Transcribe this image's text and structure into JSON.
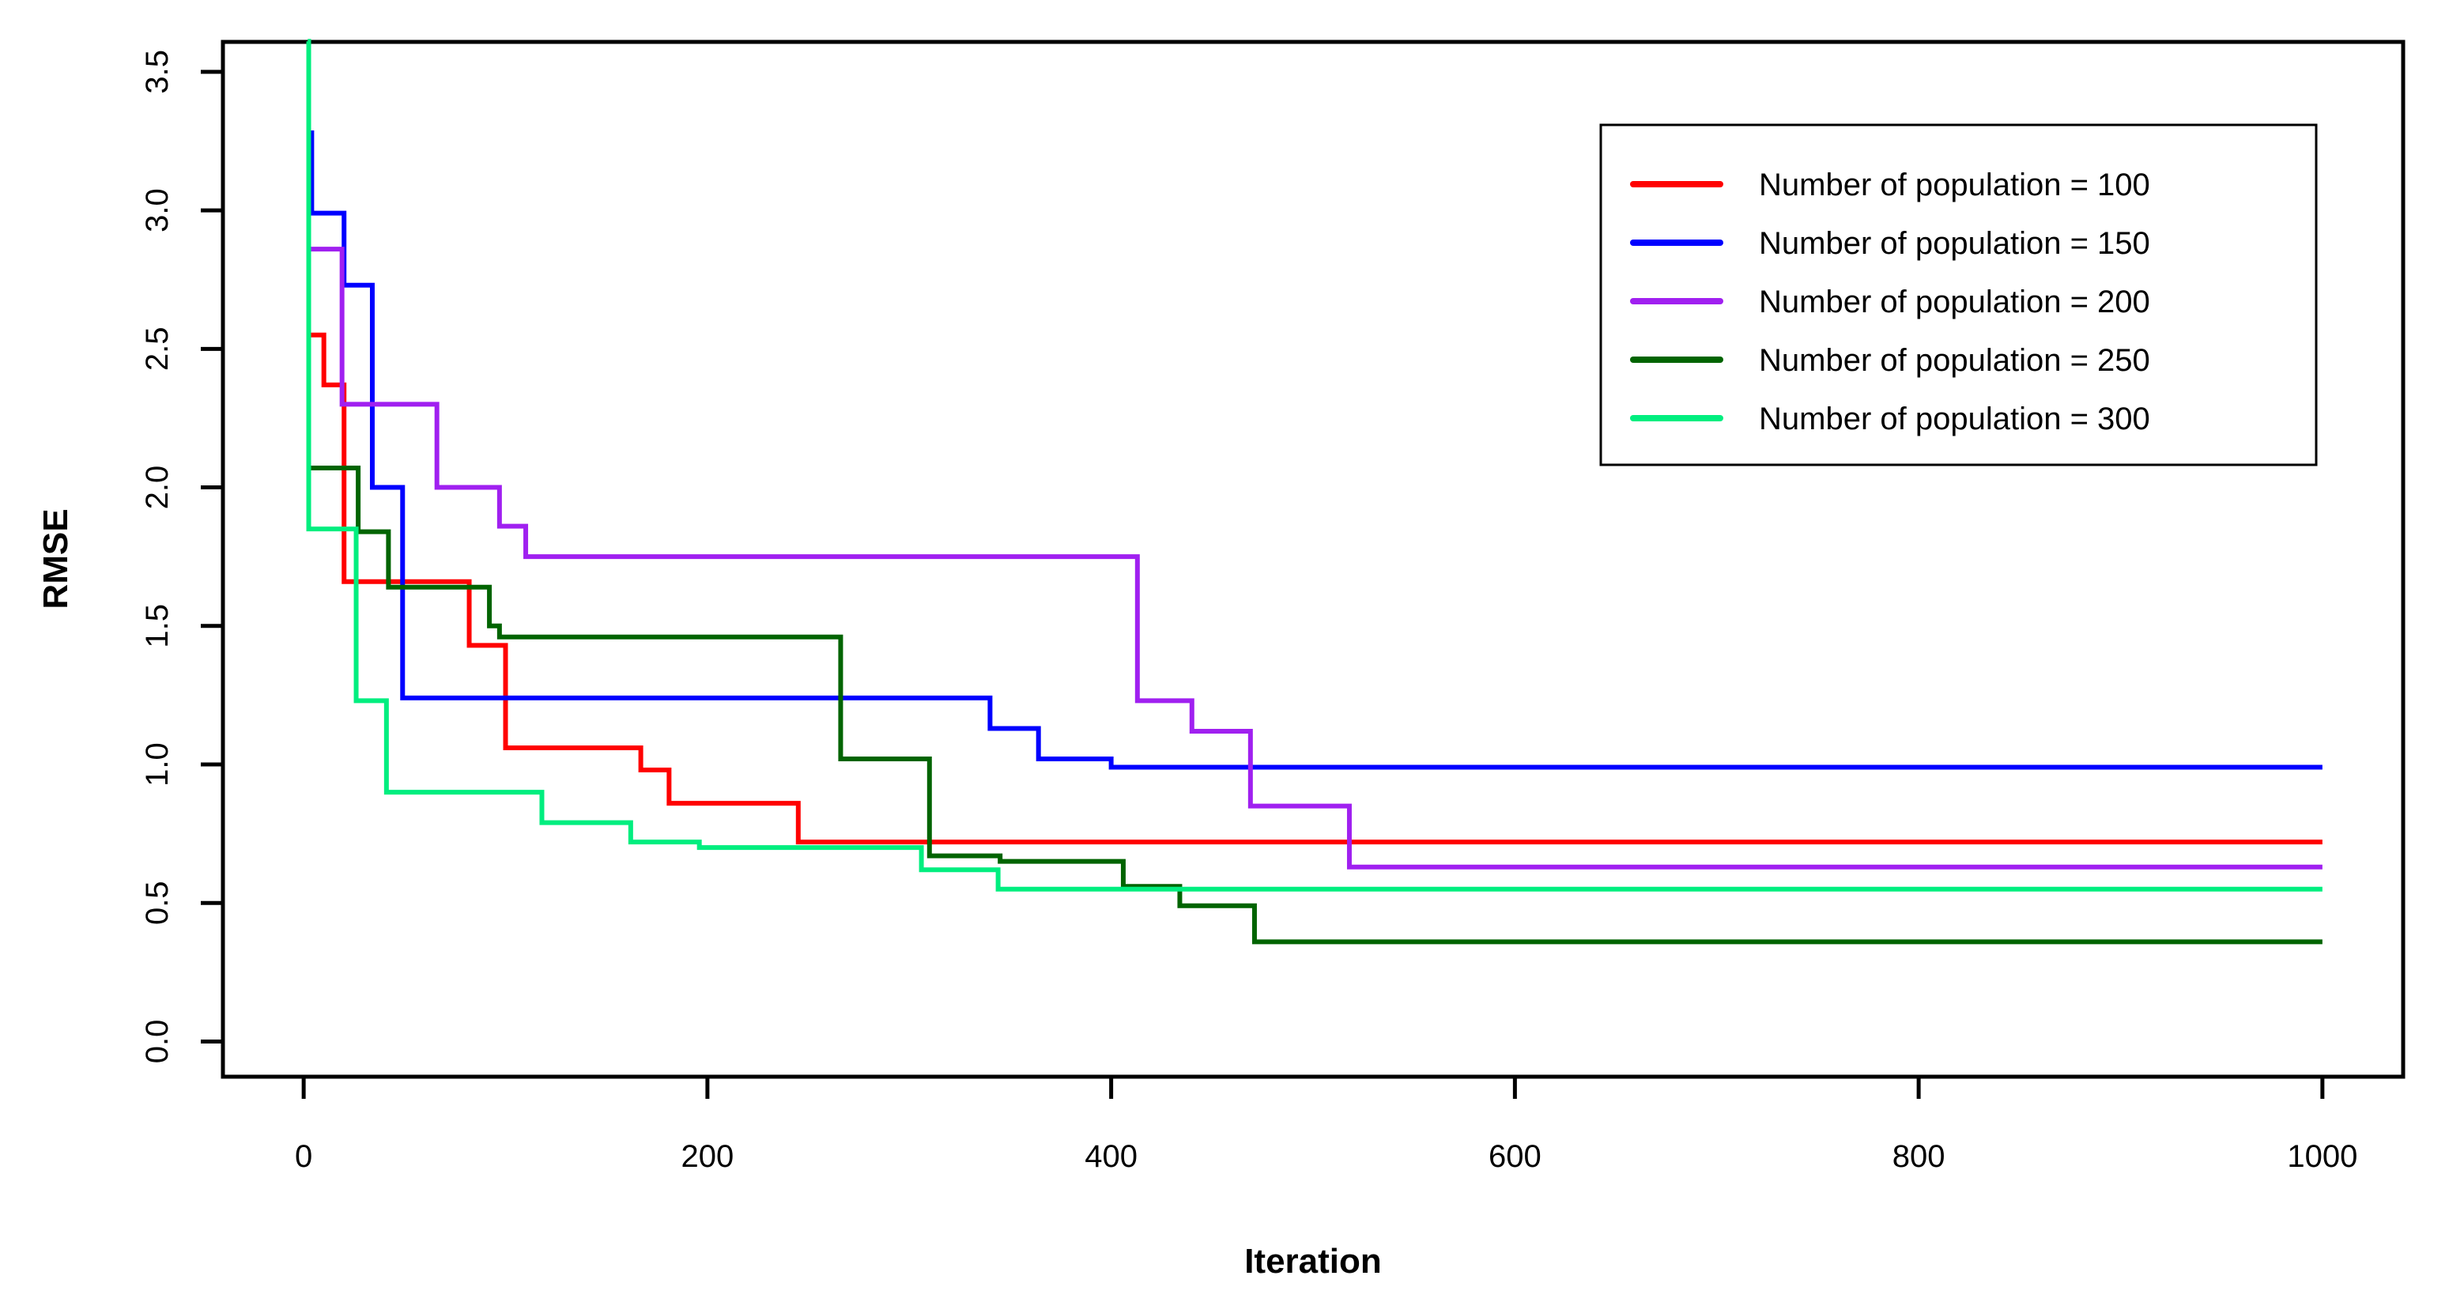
{
  "chart_data": {
    "type": "line",
    "subtype": "step",
    "title": "",
    "xlabel": "Iteration",
    "ylabel": "RMSE",
    "x_ticks": [
      0,
      200,
      400,
      600,
      800,
      1000
    ],
    "y_ticks": [
      0.0,
      0.5,
      1.0,
      1.5,
      2.0,
      2.5,
      3.0,
      3.5
    ],
    "xlim": [
      -40,
      1040
    ],
    "ylim": [
      -0.127,
      3.608
    ],
    "grid": false,
    "legend_position": "top-right",
    "legend_border": true,
    "background": "#ffffff",
    "axis_color": "#000000",
    "series": [
      {
        "name": "Number of population = 100",
        "color": "#FF0000",
        "end_x": 1000,
        "step_points": [
          [
            3,
            2.55
          ],
          [
            10,
            2.37
          ],
          [
            20,
            1.66
          ],
          [
            82,
            1.43
          ],
          [
            100,
            1.06
          ],
          [
            167,
            0.98
          ],
          [
            181,
            0.86
          ],
          [
            245,
            0.72
          ]
        ]
      },
      {
        "name": "Number of population = 150",
        "color": "#0000FF",
        "end_x": 1000,
        "step_points": [
          [
            2.5,
            3.28
          ],
          [
            4,
            2.99
          ],
          [
            20,
            2.73
          ],
          [
            34,
            2.0
          ],
          [
            49,
            1.24
          ],
          [
            340,
            1.13
          ],
          [
            364,
            1.02
          ],
          [
            400,
            0.99
          ]
        ]
      },
      {
        "name": "Number of population = 200",
        "color": "#A020F0",
        "end_x": 1000,
        "step_points": [
          [
            2.5,
            2.86
          ],
          [
            19,
            2.3
          ],
          [
            66,
            2.0
          ],
          [
            97,
            1.86
          ],
          [
            110,
            1.75
          ],
          [
            413,
            1.23
          ],
          [
            440,
            1.12
          ],
          [
            469,
            0.85
          ],
          [
            518,
            0.63
          ]
        ]
      },
      {
        "name": "Number of population = 250",
        "color": "#006400",
        "end_x": 1000,
        "step_points": [
          [
            3.5,
            2.07
          ],
          [
            27,
            1.84
          ],
          [
            42,
            1.64
          ],
          [
            92,
            1.5
          ],
          [
            97,
            1.46
          ],
          [
            266,
            1.02
          ],
          [
            310,
            0.67
          ],
          [
            345,
            0.65
          ],
          [
            406,
            0.56
          ],
          [
            434,
            0.49
          ],
          [
            471,
            0.36
          ]
        ]
      },
      {
        "name": "Number of population = 300",
        "color": "#00EE7F",
        "end_x": 1000,
        "step_points": [
          [
            2,
            3.61
          ],
          [
            2.5,
            1.85
          ],
          [
            26,
            1.23
          ],
          [
            41,
            0.9
          ],
          [
            118,
            0.79
          ],
          [
            162,
            0.72
          ],
          [
            196,
            0.7
          ],
          [
            306,
            0.62
          ],
          [
            344,
            0.55
          ]
        ]
      }
    ]
  }
}
